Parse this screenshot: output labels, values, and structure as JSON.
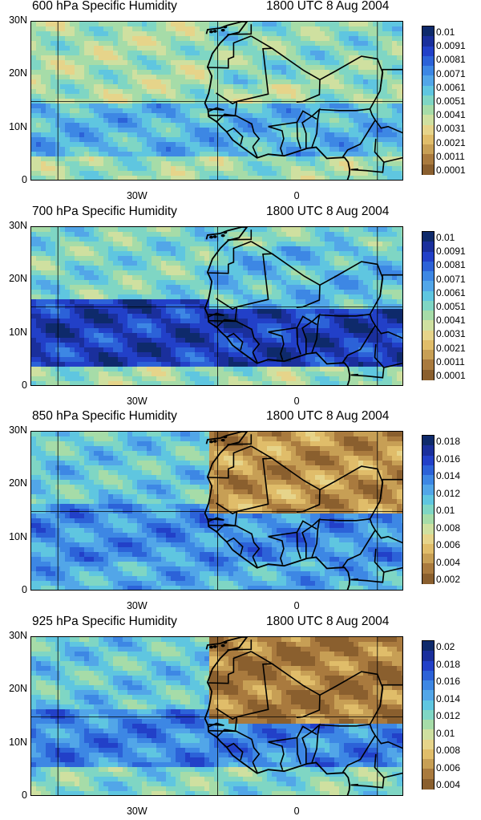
{
  "panels": [
    {
      "title_left": "600 hPa Specific Humidity",
      "title_right": "1800 UTC 8 Aug 2004",
      "y_ticks": [
        "30N",
        "20N",
        "10N",
        "0"
      ],
      "x_ticks": [
        "30W",
        "0"
      ],
      "colorbar_labels": [
        "0.01",
        "0.0091",
        "0.0081",
        "0.0071",
        "0.0061",
        "0.0051",
        "0.0041",
        "0.0031",
        "0.0021",
        "0.0011",
        "0.0001"
      ]
    },
    {
      "title_left": "700 hPa Specific Humidity",
      "title_right": "1800 UTC 8 Aug 2004",
      "y_ticks": [
        "30N",
        "20N",
        "10N",
        "0"
      ],
      "x_ticks": [
        "30W",
        "0"
      ],
      "colorbar_labels": [
        "0.01",
        "0.0091",
        "0.0081",
        "0.0071",
        "0.0061",
        "0.0051",
        "0.0041",
        "0.0031",
        "0.0021",
        "0.0011",
        "0.0001"
      ]
    },
    {
      "title_left": "850 hPa Specific Humidity",
      "title_right": "1800 UTC 8 Aug 2004",
      "y_ticks": [
        "30N",
        "20N",
        "10N",
        "0"
      ],
      "x_ticks": [
        "30W",
        "0"
      ],
      "colorbar_labels": [
        "0.018",
        "0.016",
        "0.014",
        "0.012",
        "0.01",
        "0.008",
        "0.006",
        "0.004",
        "0.002"
      ]
    },
    {
      "title_left": "925 hPa Specific Humidity",
      "title_right": "1800 UTC 8 Aug 2004",
      "y_ticks": [
        "30N",
        "20N",
        "10N",
        "0"
      ],
      "x_ticks": [
        "30W",
        "0"
      ],
      "colorbar_labels": [
        "0.02",
        "0.018",
        "0.016",
        "0.014",
        "0.012",
        "0.01",
        "0.008",
        "0.006",
        "0.004"
      ]
    }
  ],
  "colors": {
    "palette_moist_to_dry": [
      "#0e2a6b",
      "#1a2f9c",
      "#2240c8",
      "#2c62d8",
      "#3d87e4",
      "#52a6e8",
      "#5fc6e0",
      "#7fd6c4",
      "#a6dca8",
      "#cfe0a0",
      "#e6d48a",
      "#e0bd6a",
      "#c79f55",
      "#a97a3e",
      "#8a5f2e"
    ],
    "border": "#000000",
    "grid": "#000000"
  },
  "map_extent": {
    "lon_min": -50,
    "lon_max": 20,
    "lat_min": 0,
    "lat_max": 30
  }
}
